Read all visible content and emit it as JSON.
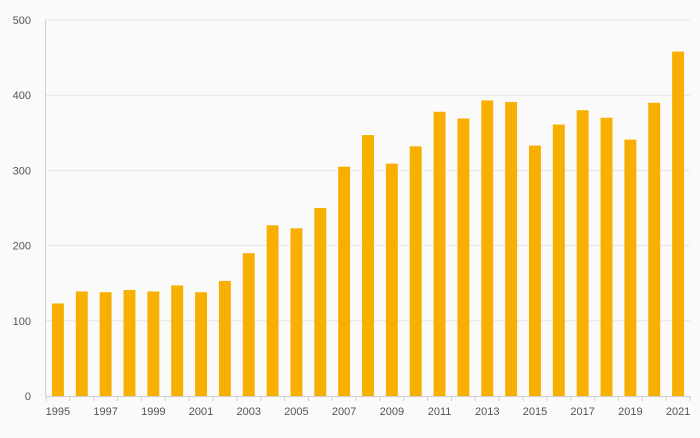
{
  "chart_data": {
    "type": "bar",
    "title": "",
    "xlabel": "",
    "ylabel": "",
    "categories": [
      "1995",
      "1996",
      "1997",
      "1998",
      "1999",
      "2000",
      "2001",
      "2002",
      "2003",
      "2004",
      "2005",
      "2006",
      "2007",
      "2008",
      "2009",
      "2010",
      "2011",
      "2012",
      "2013",
      "2014",
      "2015",
      "2016",
      "2017",
      "2018",
      "2019",
      "2020",
      "2021"
    ],
    "x_tick_labels": [
      "1995",
      "1997",
      "1999",
      "2001",
      "2003",
      "2005",
      "2007",
      "2009",
      "2011",
      "2013",
      "2015",
      "2017",
      "2019",
      "2021"
    ],
    "values": [
      123,
      139,
      138,
      141,
      139,
      147,
      138,
      153,
      190,
      227,
      223,
      250,
      305,
      347,
      309,
      332,
      378,
      369,
      393,
      391,
      333,
      361,
      380,
      370,
      341,
      390,
      458
    ],
    "ylim": [
      0,
      500
    ],
    "y_ticks": [
      0,
      100,
      200,
      300,
      400,
      500
    ],
    "grid": true,
    "legend": "none",
    "colors": {
      "bar": "#f7b000",
      "grid": "#e6e6e6",
      "axis": "#cfcfcf",
      "tick_text": "#555555",
      "background": "#fafafa"
    }
  }
}
